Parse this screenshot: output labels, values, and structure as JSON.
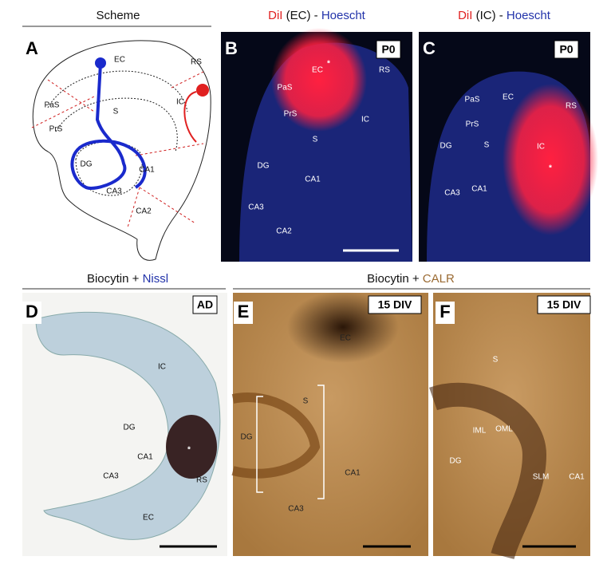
{
  "headers": {
    "scheme": "Scheme",
    "b": [
      "DiI",
      " (EC) - ",
      "Hoescht"
    ],
    "c": [
      "DiI",
      " (IC) - ",
      "Hoescht"
    ],
    "d": [
      "Biocytin + ",
      "Nissl"
    ],
    "ef": [
      "Biocytin + ",
      "CALR"
    ]
  },
  "panels": [
    {
      "letter": "A",
      "labels": [
        "EC",
        "RS",
        "PaS",
        "IC",
        "S",
        "PrS",
        "DG",
        "CA1",
        "CA3",
        "CA2"
      ]
    },
    {
      "letter": "B",
      "badge": "P0",
      "labels": [
        "EC",
        "*",
        "RS",
        "PaS",
        "PrS",
        "IC",
        "S",
        "DG",
        "CA1",
        "CA3",
        "CA2"
      ]
    },
    {
      "letter": "C",
      "badge": "P0",
      "labels": [
        "PaS",
        "EC",
        "RS",
        "PrS",
        "DG",
        "S",
        "IC",
        "*",
        "CA3",
        "CA1"
      ]
    },
    {
      "letter": "D",
      "badge": "AD",
      "labels": [
        "IC",
        "DG",
        "*",
        "CA1",
        "CA3",
        "RS",
        "EC"
      ]
    },
    {
      "letter": "E",
      "badge": "15 DIV",
      "labels": [
        "EC",
        "S",
        "DG",
        "CA1",
        "CA3"
      ]
    },
    {
      "letter": "F",
      "badge": "15 DIV",
      "labels": [
        "S",
        "IML",
        "OML",
        "DG",
        "SLM",
        "CA1"
      ]
    }
  ]
}
